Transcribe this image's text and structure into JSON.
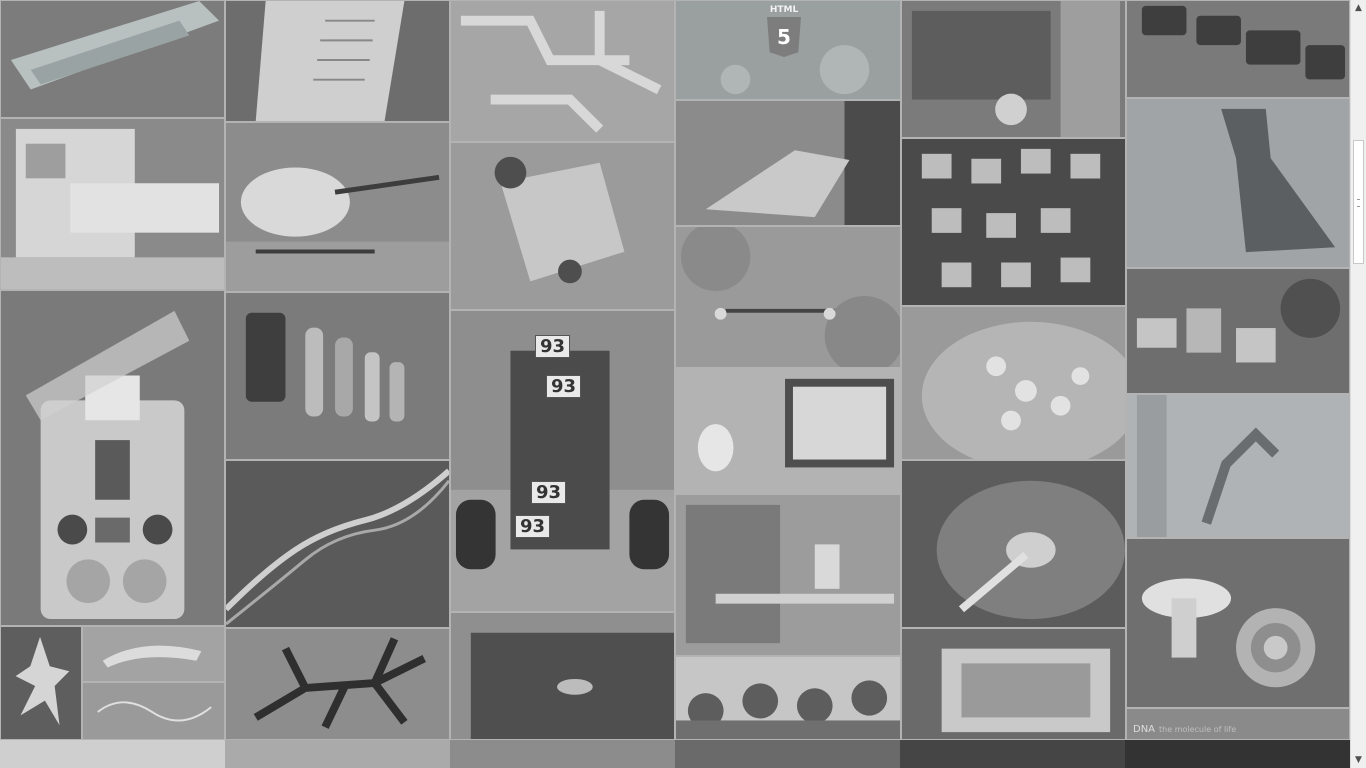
{
  "gallery": {
    "html5_badge": {
      "label": "HTML",
      "number": "5"
    },
    "car_numbers": [
      "93",
      "93",
      "93",
      "93"
    ],
    "dna_caption": {
      "title": "DNA",
      "subtitle": "the molecule of life"
    }
  },
  "colorbar": {
    "segments": [
      "#cfcfcf",
      "#aaaaaa",
      "#8c8c8c",
      "#6a6a6a",
      "#454545",
      "#333333"
    ]
  },
  "scrollbar": {
    "up_icon": "▲",
    "down_icon": "▼"
  }
}
